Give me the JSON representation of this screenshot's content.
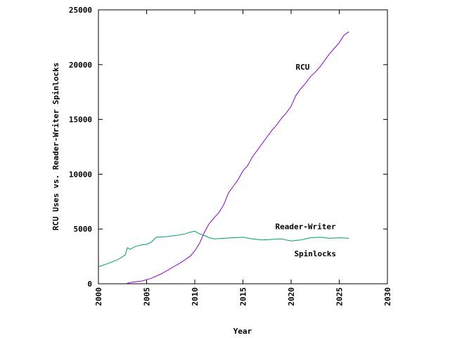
{
  "chart_data": {
    "type": "line",
    "title": "",
    "xlabel": "Year",
    "ylabel": "RCU Uses vs. Reader-Writer Spinlocks",
    "xlim": [
      2000,
      2030
    ],
    "ylim": [
      0,
      25000
    ],
    "x_ticks": [
      2000,
      2005,
      2010,
      2015,
      2020,
      2025,
      2030
    ],
    "y_ticks": [
      0,
      5000,
      10000,
      15000,
      20000,
      25000
    ],
    "grid": false,
    "series": [
      {
        "name": "RCU",
        "color": "#9400d3",
        "x": [
          2002.8,
          2003.5,
          2004.5,
          2005.5,
          2006.5,
          2007.5,
          2008.5,
          2009.5,
          2010.0,
          2010.5,
          2011.0,
          2011.5,
          2012.0,
          2012.5,
          2013.0,
          2013.5,
          2014.0,
          2014.5,
          2015.0,
          2015.5,
          2016.0,
          2016.5,
          2017.0,
          2017.5,
          2018.0,
          2018.5,
          2019.0,
          2019.5,
          2020.0,
          2020.5,
          2021.0,
          2021.5,
          2022.0,
          2022.5,
          2023.0,
          2023.5,
          2024.0,
          2024.5,
          2025.0,
          2025.5,
          2026.0
        ],
        "y": [
          0,
          150,
          250,
          500,
          900,
          1400,
          1900,
          2500,
          3000,
          3700,
          4700,
          5500,
          6000,
          6500,
          7200,
          8300,
          8900,
          9500,
          10300,
          10800,
          11600,
          12200,
          12800,
          13400,
          14000,
          14500,
          15100,
          15600,
          16200,
          17200,
          17800,
          18300,
          18900,
          19300,
          19800,
          20400,
          21000,
          21500,
          22000,
          22700,
          23000
        ]
      },
      {
        "name": "Reader-Writer Spinlocks",
        "color": "#009e73",
        "x": [
          2000.0,
          2001.0,
          2002.0,
          2002.8,
          2003.0,
          2003.3,
          2003.7,
          2004.0,
          2004.5,
          2005.0,
          2005.5,
          2006.0,
          2007.0,
          2008.0,
          2009.0,
          2009.5,
          2010.0,
          2010.5,
          2011.0,
          2011.5,
          2012.0,
          2013.0,
          2014.0,
          2015.0,
          2016.0,
          2017.0,
          2018.0,
          2019.0,
          2020.0,
          2021.0,
          2022.0,
          2023.0,
          2024.0,
          2025.0,
          2026.0
        ],
        "y": [
          1550,
          1850,
          2200,
          2650,
          3300,
          3150,
          3350,
          3450,
          3550,
          3600,
          3800,
          4250,
          4300,
          4400,
          4550,
          4700,
          4800,
          4550,
          4400,
          4200,
          4100,
          4150,
          4200,
          4250,
          4100,
          4000,
          4050,
          4100,
          3900,
          4000,
          4200,
          4250,
          4150,
          4200,
          4150
        ]
      }
    ],
    "annotations": [
      {
        "text": "RCU",
        "x": 2021.2,
        "y": 19800
      },
      {
        "text": "Reader-Writer",
        "x": 2021.5,
        "y": 5250
      },
      {
        "text": "Spinlocks",
        "x": 2022.5,
        "y": 2750
      }
    ]
  }
}
